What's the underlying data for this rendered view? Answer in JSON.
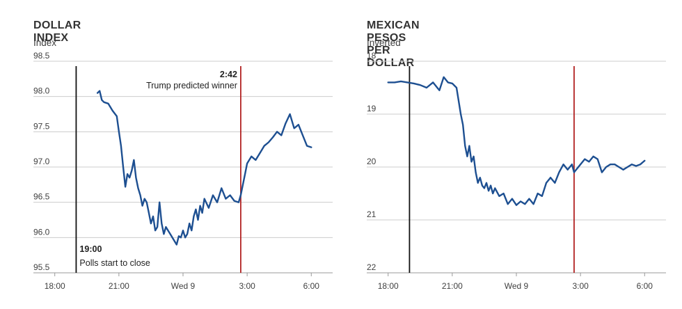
{
  "colors": {
    "series": "#1d4f91",
    "grid": "#cccccc",
    "axis": "#999999",
    "polls_line": "#111111",
    "event_line": "#b22222"
  },
  "chart_data": [
    {
      "type": "line",
      "title": "DOLLAR INDEX",
      "subtitle": "Index",
      "x_tick_labels": [
        "18:00",
        "21:00",
        "Wed 9",
        "3:00",
        "6:00"
      ],
      "x_ticks_hours": [
        18,
        21,
        24,
        27,
        30
      ],
      "xlim": [
        17.0,
        31.0
      ],
      "ylim": [
        95.5,
        98.5
      ],
      "y_ticks": [
        95.5,
        96.0,
        96.5,
        97.0,
        97.5,
        98.0,
        98.5
      ],
      "y_tick_labels": [
        "95.5",
        "96.0",
        "96.5",
        "97.0",
        "97.5",
        "98.0",
        "98.5"
      ],
      "inverted": false,
      "grid": true,
      "vlines": [
        {
          "x": 19.0,
          "color": "#111111",
          "label_bold": "19:00",
          "label": "Polls start to close",
          "label_pos": "bottom-right"
        },
        {
          "x": 26.7,
          "color": "#b22222",
          "label_bold": "2:42",
          "label": "Trump predicted winner",
          "label_pos": "top-left"
        }
      ],
      "series": [
        {
          "x": [
            20.0,
            20.1,
            20.2,
            20.3,
            20.5,
            20.7,
            20.9,
            21.0,
            21.1,
            21.2,
            21.3,
            21.4,
            21.5,
            21.6,
            21.7,
            21.8,
            21.9,
            22.0,
            22.1,
            22.2,
            22.3,
            22.4,
            22.5,
            22.6,
            22.7,
            22.8,
            22.9,
            23.0,
            23.1,
            23.2,
            23.3,
            23.4,
            23.5,
            23.6,
            23.7,
            23.8,
            23.9,
            24.0,
            24.1,
            24.2,
            24.3,
            24.4,
            24.5,
            24.6,
            24.7,
            24.8,
            24.9,
            25.0,
            25.2,
            25.4,
            25.6,
            25.8,
            26.0,
            26.2,
            26.4,
            26.6,
            26.7,
            26.8,
            26.9,
            27.0,
            27.2,
            27.4,
            27.6,
            27.8,
            28.0,
            28.2,
            28.4,
            28.6,
            28.8,
            29.0,
            29.2,
            29.4,
            29.6,
            29.8,
            30.0
          ],
          "y": [
            98.05,
            98.08,
            97.95,
            97.92,
            97.9,
            97.8,
            97.72,
            97.5,
            97.3,
            97.0,
            96.72,
            96.9,
            96.85,
            96.95,
            97.1,
            96.85,
            96.7,
            96.6,
            96.45,
            96.55,
            96.5,
            96.35,
            96.2,
            96.3,
            96.1,
            96.15,
            96.5,
            96.2,
            96.05,
            96.15,
            96.1,
            96.05,
            96.0,
            95.95,
            95.9,
            96.02,
            96.0,
            96.1,
            96.0,
            96.05,
            96.2,
            96.1,
            96.3,
            96.4,
            96.25,
            96.45,
            96.35,
            96.55,
            96.42,
            96.6,
            96.5,
            96.7,
            96.55,
            96.6,
            96.52,
            96.5,
            96.6,
            96.75,
            96.9,
            97.05,
            97.15,
            97.1,
            97.2,
            97.3,
            97.35,
            97.42,
            97.5,
            97.45,
            97.62,
            97.75,
            97.55,
            97.6,
            97.45,
            97.3,
            97.28
          ]
        }
      ]
    },
    {
      "type": "line",
      "title": "MEXICAN PESOS PER DOLLAR",
      "subtitle": "Inverted",
      "x_tick_labels": [
        "18:00",
        "21:00",
        "Wed 9",
        "3:00",
        "6:00"
      ],
      "x_ticks_hours": [
        18,
        21,
        24,
        27,
        30
      ],
      "xlim": [
        17.0,
        31.0
      ],
      "ylim": [
        18,
        22
      ],
      "y_ticks": [
        18,
        19,
        20,
        21,
        22
      ],
      "y_tick_labels": [
        "18",
        "19",
        "20",
        "21",
        "22"
      ],
      "inverted": true,
      "grid": true,
      "vlines": [
        {
          "x": 19.0,
          "color": "#111111"
        },
        {
          "x": 26.7,
          "color": "#b22222"
        }
      ],
      "series": [
        {
          "x": [
            18.0,
            18.3,
            18.6,
            18.9,
            19.2,
            19.5,
            19.8,
            20.1,
            20.4,
            20.6,
            20.8,
            21.0,
            21.2,
            21.4,
            21.5,
            21.6,
            21.7,
            21.8,
            21.9,
            22.0,
            22.1,
            22.2,
            22.3,
            22.4,
            22.5,
            22.6,
            22.7,
            22.8,
            22.9,
            23.0,
            23.2,
            23.4,
            23.6,
            23.8,
            24.0,
            24.2,
            24.4,
            24.6,
            24.8,
            25.0,
            25.2,
            25.4,
            25.6,
            25.8,
            26.0,
            26.2,
            26.4,
            26.6,
            26.7,
            26.8,
            27.0,
            27.2,
            27.4,
            27.6,
            27.8,
            28.0,
            28.2,
            28.4,
            28.6,
            28.8,
            29.0,
            29.2,
            29.4,
            29.6,
            29.8,
            30.0
          ],
          "y": [
            18.4,
            18.4,
            18.38,
            18.4,
            18.42,
            18.45,
            18.5,
            18.4,
            18.55,
            18.3,
            18.4,
            18.42,
            18.5,
            19.0,
            19.2,
            19.6,
            19.8,
            19.6,
            19.9,
            19.8,
            20.1,
            20.3,
            20.2,
            20.35,
            20.4,
            20.3,
            20.45,
            20.35,
            20.5,
            20.4,
            20.55,
            20.5,
            20.7,
            20.6,
            20.72,
            20.65,
            20.7,
            20.6,
            20.7,
            20.5,
            20.55,
            20.3,
            20.2,
            20.3,
            20.1,
            19.95,
            20.05,
            19.95,
            20.1,
            20.05,
            19.95,
            19.85,
            19.9,
            19.8,
            19.85,
            20.1,
            20.0,
            19.95,
            19.95,
            20.0,
            20.05,
            20.0,
            19.95,
            19.98,
            19.95,
            19.88
          ]
        }
      ]
    }
  ]
}
